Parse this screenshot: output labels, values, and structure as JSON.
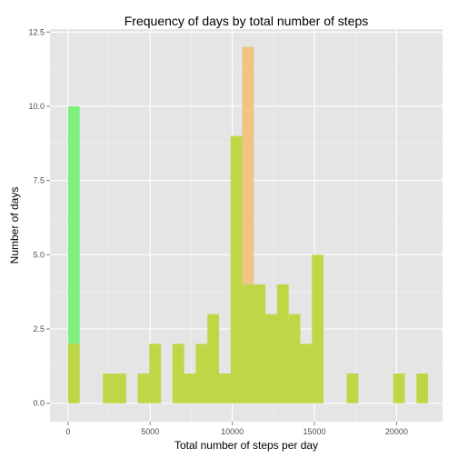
{
  "chart_data": {
    "type": "bar",
    "title": "Frequency of days by total number of steps",
    "xlabel": "Total number of steps per day",
    "ylabel": "Number of days",
    "xlim": [
      -1100,
      22800
    ],
    "ylim": [
      -0.62,
      12.6
    ],
    "xticks": [
      0,
      5000,
      10000,
      15000,
      20000
    ],
    "xtick_labels": [
      "0",
      "5000",
      "10000",
      "15000",
      "20000"
    ],
    "yticks": [
      0,
      2.5,
      5,
      7.5,
      10,
      12.5
    ],
    "ytick_labels": [
      "0.0",
      "2.5",
      "5.0",
      "7.5",
      "10.0",
      "12.5"
    ],
    "grid": true,
    "legend": "none",
    "bin_width": 707,
    "colors": {
      "panel": "#e5e5e5",
      "grid_major": "#ffffff",
      "grid_minor": "#f2f2f2",
      "series_a": "#7ef07e",
      "series_b": "#f0c483",
      "overlap": "#bdd747"
    },
    "series": [
      {
        "fill": "series_a",
        "bins": [
          {
            "x0": 0,
            "x1": 707,
            "count": 10
          },
          {
            "x0": 2121,
            "x1": 2828,
            "count": 1
          },
          {
            "x0": 2828,
            "x1": 3535,
            "count": 1
          },
          {
            "x0": 4242,
            "x1": 4949,
            "count": 1
          },
          {
            "x0": 4949,
            "x1": 5656,
            "count": 2
          },
          {
            "x0": 6363,
            "x1": 7070,
            "count": 2
          },
          {
            "x0": 7070,
            "x1": 7777,
            "count": 1
          },
          {
            "x0": 7777,
            "x1": 8484,
            "count": 2
          },
          {
            "x0": 8484,
            "x1": 9191,
            "count": 3
          },
          {
            "x0": 9191,
            "x1": 9898,
            "count": 1
          },
          {
            "x0": 9898,
            "x1": 10605,
            "count": 9
          },
          {
            "x0": 10605,
            "x1": 11312,
            "count": 4
          },
          {
            "x0": 11312,
            "x1": 12019,
            "count": 4
          },
          {
            "x0": 12019,
            "x1": 12726,
            "count": 3
          },
          {
            "x0": 12726,
            "x1": 13433,
            "count": 4
          },
          {
            "x0": 13433,
            "x1": 14140,
            "count": 3
          },
          {
            "x0": 14140,
            "x1": 14847,
            "count": 2
          },
          {
            "x0": 14847,
            "x1": 15554,
            "count": 5
          },
          {
            "x0": 16968,
            "x1": 17675,
            "count": 1
          },
          {
            "x0": 19796,
            "x1": 20503,
            "count": 1
          },
          {
            "x0": 21210,
            "x1": 21917,
            "count": 1
          }
        ]
      },
      {
        "fill": "series_b",
        "bins": [
          {
            "x0": 0,
            "x1": 707,
            "count": 2
          },
          {
            "x0": 2121,
            "x1": 2828,
            "count": 1
          },
          {
            "x0": 2828,
            "x1": 3535,
            "count": 1
          },
          {
            "x0": 4242,
            "x1": 4949,
            "count": 1
          },
          {
            "x0": 4949,
            "x1": 5656,
            "count": 2
          },
          {
            "x0": 6363,
            "x1": 7070,
            "count": 2
          },
          {
            "x0": 7070,
            "x1": 7777,
            "count": 1
          },
          {
            "x0": 7777,
            "x1": 8484,
            "count": 2
          },
          {
            "x0": 8484,
            "x1": 9191,
            "count": 3
          },
          {
            "x0": 9191,
            "x1": 9898,
            "count": 1
          },
          {
            "x0": 9898,
            "x1": 10605,
            "count": 9
          },
          {
            "x0": 10605,
            "x1": 11312,
            "count": 12
          },
          {
            "x0": 11312,
            "x1": 12019,
            "count": 4
          },
          {
            "x0": 12019,
            "x1": 12726,
            "count": 3
          },
          {
            "x0": 12726,
            "x1": 13433,
            "count": 4
          },
          {
            "x0": 13433,
            "x1": 14140,
            "count": 3
          },
          {
            "x0": 14140,
            "x1": 14847,
            "count": 2
          },
          {
            "x0": 14847,
            "x1": 15554,
            "count": 5
          },
          {
            "x0": 16968,
            "x1": 17675,
            "count": 1
          },
          {
            "x0": 19796,
            "x1": 20503,
            "count": 1
          },
          {
            "x0": 21210,
            "x1": 21917,
            "count": 1
          }
        ]
      }
    ]
  }
}
